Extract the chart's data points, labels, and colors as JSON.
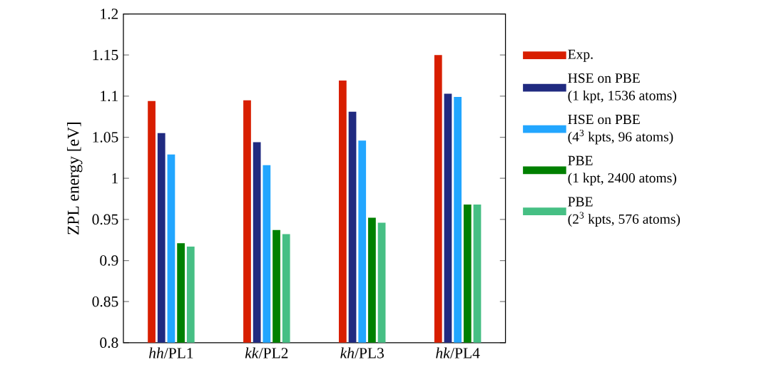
{
  "chart_data": {
    "type": "bar",
    "ylabel": "ZPL energy [eV]",
    "categories": [
      "*hh*/PL1",
      "*kk*/PL2",
      "*kh*/PL3",
      "*hk*/PL4"
    ],
    "series": [
      {
        "name": "Exp.",
        "color": "#d81e00",
        "values": [
          1.094,
          1.095,
          1.119,
          1.15
        ]
      },
      {
        "name": "HSE on PBE\n(1 kpt, 1536 atoms)",
        "color": "#202a80",
        "values": [
          1.055,
          1.044,
          1.081,
          1.103
        ]
      },
      {
        "name": "HSE on PBE\n(4$^{3}$ kpts, 96 atoms)",
        "color": "#22a6ff",
        "values": [
          1.029,
          1.016,
          1.046,
          1.099
        ]
      },
      {
        "name": "PBE\n(1 kpt, 2400 atoms)",
        "color": "#008000",
        "values": [
          0.921,
          0.937,
          0.952,
          0.968
        ]
      },
      {
        "name": "PBE\n(2$^{3}$ kpts, 576 atoms)",
        "color": "#46bf84",
        "values": [
          0.917,
          0.932,
          0.946,
          0.968
        ]
      }
    ],
    "ylim": [
      0.8,
      1.2
    ],
    "yticks": [
      0.8,
      0.85,
      0.9,
      0.95,
      1,
      1.05,
      1.1,
      1.15,
      1.2
    ],
    "grid": false,
    "legend": "right"
  }
}
